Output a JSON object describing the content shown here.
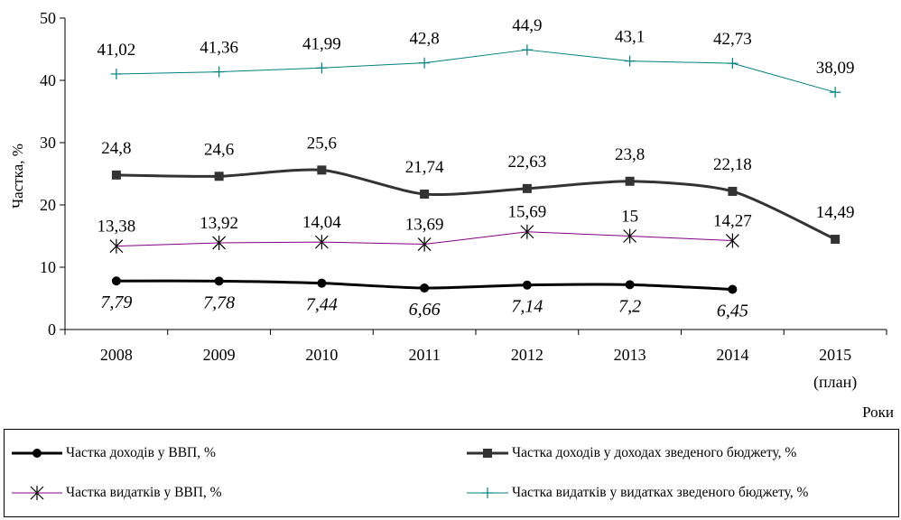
{
  "chart_data": {
    "type": "line",
    "categories": [
      "2008",
      "2009",
      "2010",
      "2011",
      "2012",
      "2013",
      "2014",
      "2015"
    ],
    "category_sublabels": [
      "",
      "",
      "",
      "",
      "",
      "",
      "",
      "(план)"
    ],
    "ylabel": "Частка, %",
    "xlabel": "Роки",
    "ylim": [
      0,
      50
    ],
    "yticks": [
      "0",
      "10",
      "20",
      "30",
      "40",
      "50"
    ],
    "grid": false,
    "legend_position": "bottom",
    "series": [
      {
        "name": "Частка доходів у ВВП, %",
        "values": [
          7.79,
          7.78,
          7.44,
          6.66,
          7.14,
          7.2,
          6.45,
          null
        ],
        "labels": [
          "7,79",
          "7,78",
          "7,44",
          "6,66",
          "7,14",
          "7,2",
          "6,45",
          ""
        ],
        "color": "#000000",
        "marker": "circle",
        "label_style": "italic"
      },
      {
        "name": "Частка доходів у доходах зведеного бюджету, %",
        "values": [
          24.8,
          24.6,
          25.6,
          21.74,
          22.63,
          23.8,
          22.18,
          14.49
        ],
        "labels": [
          "24,8",
          "24,6",
          "25,6",
          "21,74",
          "22,63",
          "23,8",
          "22,18",
          "14,49"
        ],
        "color": "#333333",
        "marker": "square",
        "label_style": "normal"
      },
      {
        "name": "Частка видатків у ВВП, %",
        "values": [
          13.38,
          13.92,
          14.04,
          13.69,
          15.69,
          15,
          14.27,
          null
        ],
        "labels": [
          "13,38",
          "13,92",
          "14,04",
          "13,69",
          "15,69",
          "15",
          "14,27",
          ""
        ],
        "color": "#800080",
        "marker": "asterisk",
        "label_style": "normal"
      },
      {
        "name": "Частка видатків у видатках зведеного бюджету, %",
        "values": [
          41.02,
          41.36,
          41.99,
          42.8,
          44.9,
          43.1,
          42.73,
          38.09
        ],
        "labels": [
          "41,02",
          "41,36",
          "41,99",
          "42,8",
          "44,9",
          "43,1",
          "42,73",
          "38,09"
        ],
        "color": "#008080",
        "marker": "plus",
        "label_style": "normal"
      }
    ]
  }
}
